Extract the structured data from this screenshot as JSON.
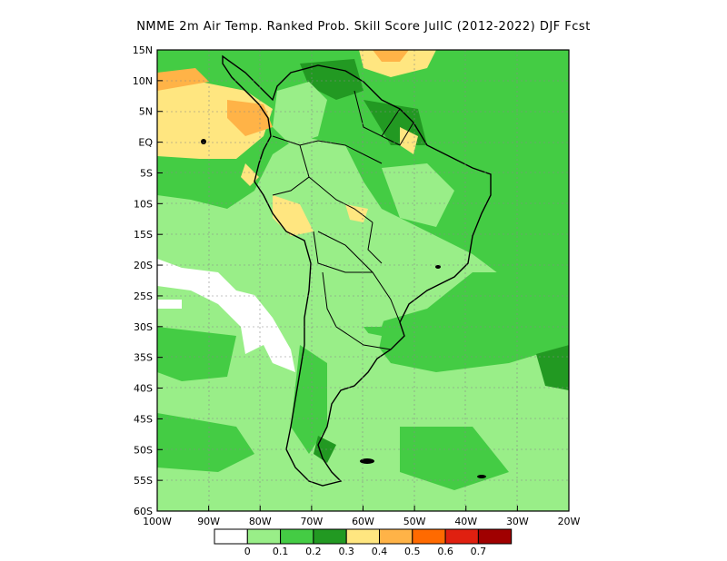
{
  "title": "NMME  2m Air Temp. Ranked Prob. Skill Score JulIC (2012-2022) DJF Fcst",
  "lat_labels": [
    "15N",
    "10N",
    "5N",
    "EQ",
    "5S",
    "10S",
    "15S",
    "20S",
    "25S",
    "30S",
    "35S",
    "40S",
    "45S",
    "50S",
    "55S",
    "60S"
  ],
  "lon_labels": [
    "100W",
    "90W",
    "80W",
    "70W",
    "60W",
    "50W",
    "40W",
    "30W",
    "20W"
  ],
  "colorbar": {
    "colors": [
      "#ffffff",
      "#99ee88",
      "#44cc44",
      "#229922",
      "#ffe680",
      "#ffb347",
      "#ff6a00",
      "#e02010",
      "#a00000"
    ],
    "labels": [
      "0",
      "0.1",
      "0.2",
      "0.3",
      "0.4",
      "0.5",
      "0.6",
      "0.7"
    ]
  },
  "legend_colors": {
    "white": "#ffffff",
    "light_green": "#99ee88",
    "green": "#44cc44",
    "dark_green": "#229922",
    "yellow": "#ffe680",
    "orange": "#ffb347"
  }
}
